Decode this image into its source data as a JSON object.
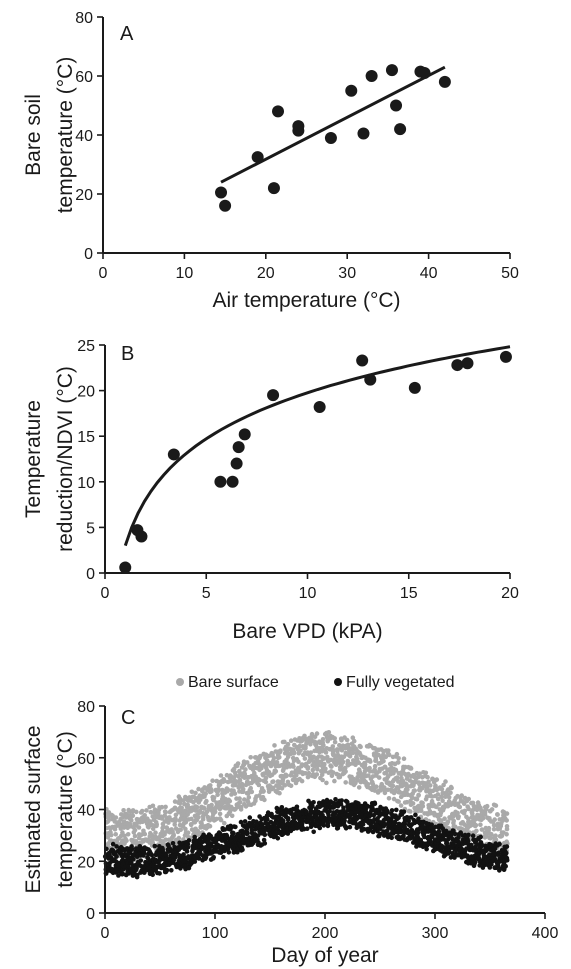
{
  "chart_data": [
    {
      "id": "A",
      "type": "scatter",
      "panel_label": "A",
      "xlabel": "Air temperature (°C)",
      "ylabel_lines": [
        "Bare soil",
        "temperature (°C)"
      ],
      "xlim": [
        0,
        50
      ],
      "ylim": [
        0,
        80
      ],
      "xticks": [
        0,
        10,
        20,
        30,
        40,
        50
      ],
      "yticks": [
        0,
        20,
        40,
        60,
        80
      ],
      "points": [
        {
          "x": 14.5,
          "y": 20.5
        },
        {
          "x": 15,
          "y": 16
        },
        {
          "x": 19,
          "y": 32.5
        },
        {
          "x": 21,
          "y": 22
        },
        {
          "x": 21.5,
          "y": 48
        },
        {
          "x": 24,
          "y": 43
        },
        {
          "x": 24,
          "y": 41.5
        },
        {
          "x": 28,
          "y": 39
        },
        {
          "x": 30.5,
          "y": 55
        },
        {
          "x": 32,
          "y": 40.5
        },
        {
          "x": 33,
          "y": 60
        },
        {
          "x": 35.5,
          "y": 62
        },
        {
          "x": 36,
          "y": 50
        },
        {
          "x": 36.5,
          "y": 42
        },
        {
          "x": 39,
          "y": 61.5
        },
        {
          "x": 39.5,
          "y": 61
        },
        {
          "x": 42,
          "y": 58
        }
      ],
      "fit": {
        "kind": "linear",
        "x": [
          14.5,
          42
        ],
        "y": [
          24,
          63
        ]
      }
    },
    {
      "id": "B",
      "type": "scatter",
      "panel_label": "B",
      "xlabel": "Bare VPD (kPA)",
      "ylabel_lines": [
        "Temperature",
        "reduction/NDVI (°C)"
      ],
      "xlim": [
        0,
        20
      ],
      "ylim": [
        0,
        25
      ],
      "xticks": [
        0,
        5,
        10,
        15,
        20
      ],
      "yticks": [
        0,
        5,
        10,
        15,
        20,
        25
      ],
      "points": [
        {
          "x": 1,
          "y": 0.6
        },
        {
          "x": 1.6,
          "y": 4.7
        },
        {
          "x": 1.8,
          "y": 4.0
        },
        {
          "x": 3.4,
          "y": 13
        },
        {
          "x": 5.7,
          "y": 10
        },
        {
          "x": 6.3,
          "y": 10
        },
        {
          "x": 6.5,
          "y": 12
        },
        {
          "x": 6.6,
          "y": 13.8
        },
        {
          "x": 6.9,
          "y": 15.2
        },
        {
          "x": 8.3,
          "y": 19.5
        },
        {
          "x": 10.6,
          "y": 18.2
        },
        {
          "x": 12.7,
          "y": 23.3
        },
        {
          "x": 13.1,
          "y": 21.2
        },
        {
          "x": 15.3,
          "y": 20.3
        },
        {
          "x": 17.4,
          "y": 22.8
        },
        {
          "x": 17.9,
          "y": 23
        },
        {
          "x": 19.8,
          "y": 23.7
        }
      ],
      "fit": {
        "kind": "logarithmic",
        "a": 3.0,
        "b": 7.28,
        "x_range": [
          1,
          20
        ]
      }
    },
    {
      "id": "C",
      "type": "scatter",
      "panel_label": "C",
      "xlabel": "Day of year",
      "ylabel_lines": [
        "Estimated surface",
        "temperature (°C)"
      ],
      "xlim": [
        0,
        400
      ],
      "ylim": [
        0,
        80
      ],
      "xticks": [
        0,
        100,
        200,
        300,
        400
      ],
      "yticks": [
        0,
        20,
        40,
        60,
        80
      ],
      "legend_position": "top",
      "series": [
        {
          "name": "Bare surface",
          "color": "#a9a9a9",
          "baseline_min": 30,
          "peak_at_day": 200,
          "peak_value": 60,
          "band_halfwidth": 9
        },
        {
          "name": "Fully vegetated",
          "color": "#121212",
          "baseline_min": 20,
          "peak_at_day": 210,
          "peak_value": 38,
          "band_halfwidth": 5
        }
      ],
      "day_range": [
        1,
        365
      ]
    }
  ]
}
